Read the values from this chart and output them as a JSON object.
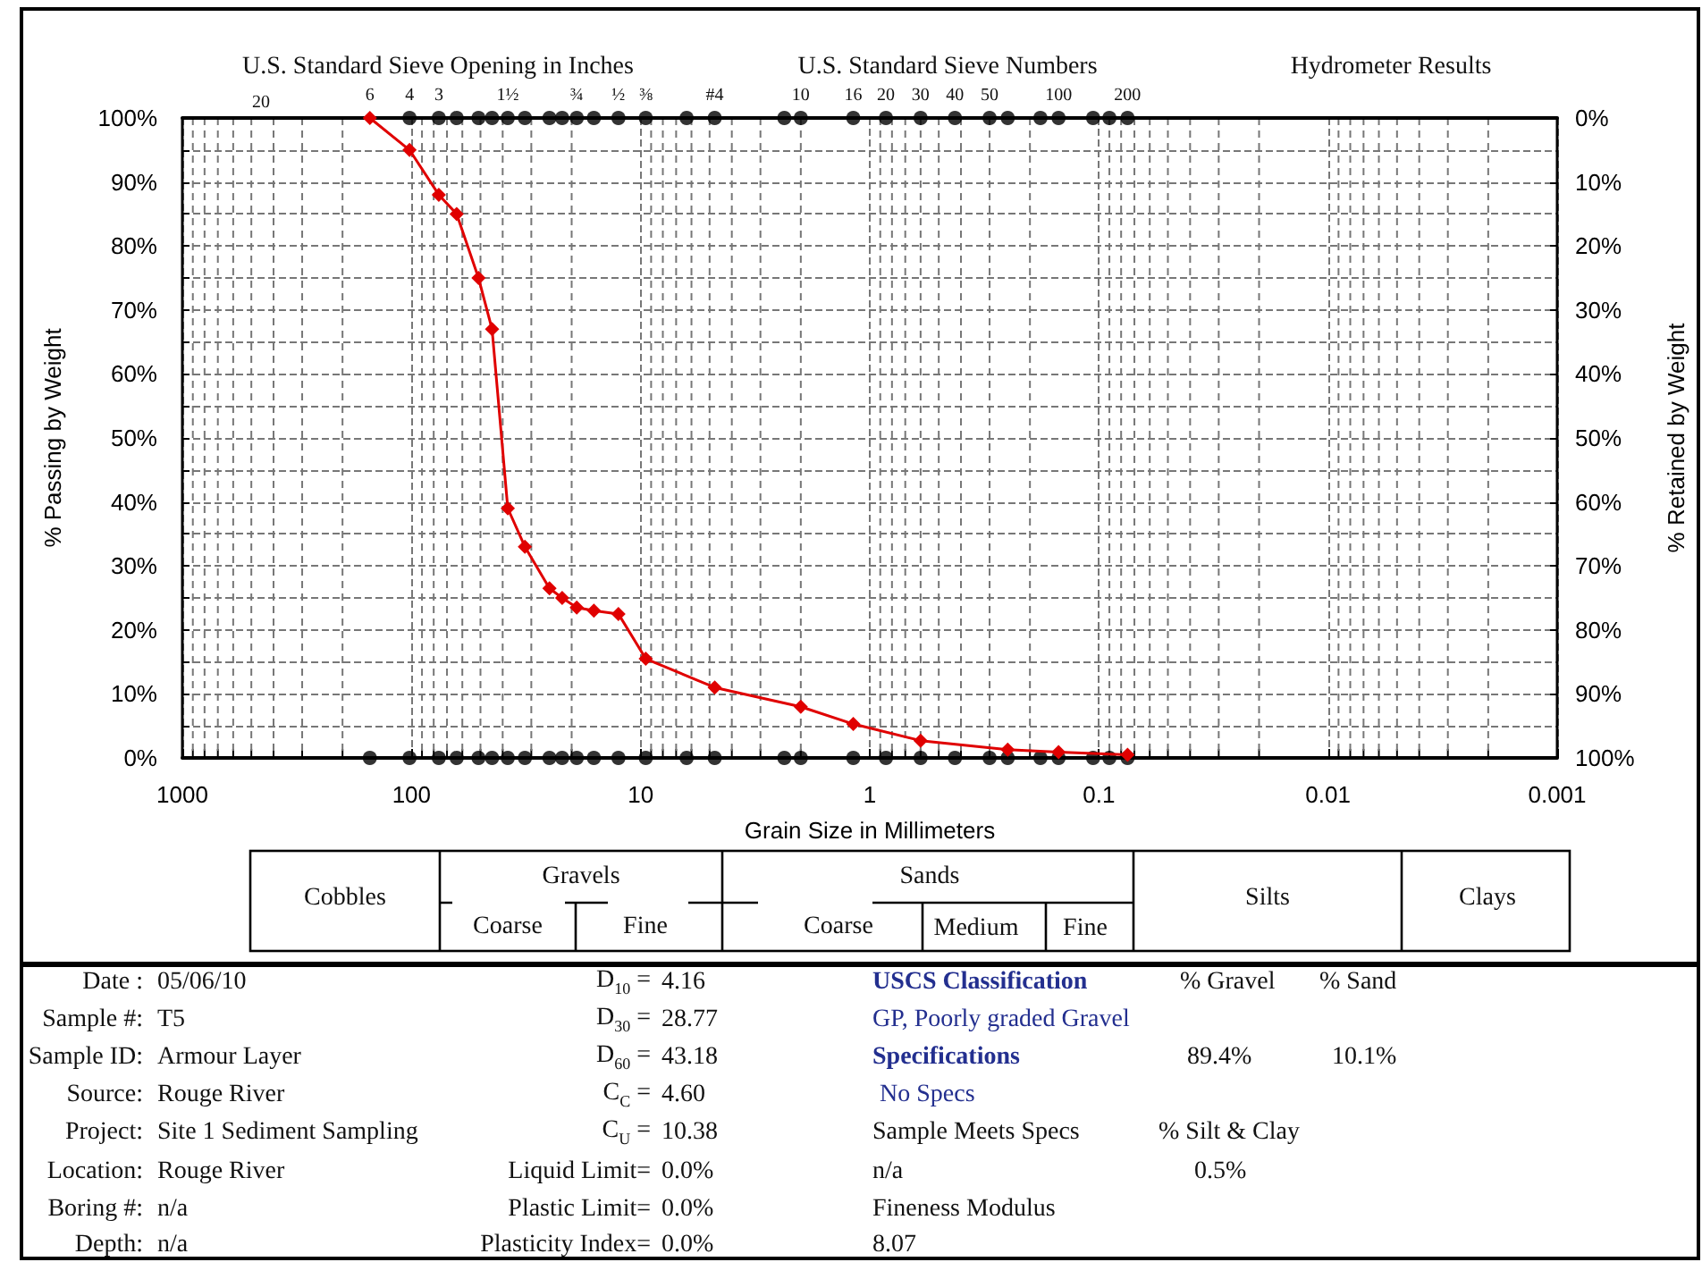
{
  "chart_data": {
    "type": "line",
    "xlabel": "Grain Size in Millimeters",
    "ylabel": "% Passing by Weight",
    "y2label": "% Retained by Weight",
    "log": "x",
    "xlim": [
      1000,
      0.001
    ],
    "xticks": [
      1000,
      {
        "value": 900,
        "label": null
      },
      {
        "value": 800,
        "label": null
      },
      {
        "value": 700,
        "label": null
      },
      {
        "value": 600,
        "label": null
      },
      {
        "value": 500,
        "label": null
      },
      {
        "value": 400,
        "label": null
      },
      {
        "value": 300,
        "label": null
      },
      {
        "value": 200,
        "label": null
      },
      100,
      {
        "value": 90,
        "label": null
      },
      {
        "value": 80,
        "label": null
      },
      {
        "value": 70,
        "label": null
      },
      {
        "value": 60,
        "label": null
      },
      {
        "value": 50,
        "label": null
      },
      {
        "value": 40,
        "label": null
      },
      {
        "value": 30,
        "label": null
      },
      {
        "value": 20,
        "label": null
      },
      10,
      {
        "value": 9,
        "label": null
      },
      {
        "value": 8,
        "label": null
      },
      {
        "value": 7,
        "label": null
      },
      {
        "value": 6,
        "label": null
      },
      {
        "value": 5,
        "label": null
      },
      {
        "value": 4,
        "label": null
      },
      {
        "value": 3,
        "label": null
      },
      {
        "value": 2,
        "label": null
      },
      1,
      {
        "value": 0.9,
        "label": null
      },
      {
        "value": 0.8,
        "label": null
      },
      {
        "value": 0.7,
        "label": null
      },
      {
        "value": 0.6,
        "label": null
      },
      {
        "value": 0.5,
        "label": null
      },
      {
        "value": 0.4,
        "label": null
      },
      {
        "value": 0.3,
        "label": null
      },
      {
        "value": 0.2,
        "label": null
      },
      0.1,
      {
        "value": 0.09,
        "label": null
      },
      {
        "value": 0.08,
        "label": null
      },
      {
        "value": 0.07,
        "label": null
      },
      {
        "value": 0.06,
        "label": null
      },
      {
        "value": 0.05,
        "label": null
      },
      {
        "value": 0.04,
        "label": null
      },
      {
        "value": 0.03,
        "label": null
      },
      {
        "value": 0.02,
        "label": null
      },
      0.01,
      {
        "value": 0.009,
        "label": null
      },
      {
        "value": 0.008,
        "label": null
      },
      {
        "value": 0.007,
        "label": null
      },
      {
        "value": 0.006,
        "label": null
      },
      {
        "value": 0.005,
        "label": null
      },
      {
        "value": 0.004,
        "label": null
      },
      {
        "value": 0.003,
        "label": null
      },
      {
        "value": 0.002,
        "label": null
      },
      0.001
    ],
    "ylim": [
      0,
      100
    ],
    "yticks": [
      {
        "value": 0,
        "label": "0%"
      },
      {
        "value": 5,
        "label": null
      },
      {
        "value": 10,
        "label": "10%"
      },
      {
        "value": 15,
        "label": null
      },
      {
        "value": 20,
        "label": "20%"
      },
      {
        "value": 25,
        "label": null
      },
      {
        "value": 30,
        "label": "30%"
      },
      {
        "value": 35,
        "label": null
      },
      {
        "value": 40,
        "label": "40%"
      },
      {
        "value": 45,
        "label": null
      },
      {
        "value": 50,
        "label": "50%"
      },
      {
        "value": 55,
        "label": null
      },
      {
        "value": 60,
        "label": "60%"
      },
      {
        "value": 65,
        "label": null
      },
      {
        "value": 70,
        "label": "70%"
      },
      {
        "value": 75,
        "label": null
      },
      {
        "value": 80,
        "label": "80%"
      },
      {
        "value": 85,
        "label": null
      },
      {
        "value": 90,
        "label": "90%"
      },
      {
        "value": 95,
        "label": null
      },
      {
        "value": 100,
        "label": "100%"
      }
    ],
    "y2lim": [
      100,
      0
    ],
    "y2ticks": [
      {
        "value": 0,
        "label": "0%"
      },
      {
        "value": 10,
        "label": "10%"
      },
      {
        "value": 20,
        "label": "20%"
      },
      {
        "value": 30,
        "label": "30%"
      },
      {
        "value": 40,
        "label": "40%"
      },
      {
        "value": 50,
        "label": "50%"
      },
      {
        "value": 60,
        "label": "60%"
      },
      {
        "value": 70,
        "label": "70%"
      },
      {
        "value": 80,
        "label": "80%"
      },
      {
        "value": 90,
        "label": "90%"
      },
      {
        "value": 100,
        "label": "100%"
      }
    ],
    "grid": true,
    "series": [
      {
        "type": "scatter",
        "color": "#000000",
        "marker": "circle",
        "x": [
          102,
          76,
          63.5,
          51,
          44.5,
          38,
          32,
          25,
          22,
          19,
          16,
          12.5,
          9.5,
          6.3,
          4.75,
          2.36,
          2,
          1.18,
          0.85,
          0.6,
          0.425,
          0.3,
          0.25,
          0.18,
          0.15,
          0.106,
          0.09,
          0.075
        ],
        "values": [
          100,
          100,
          100,
          100,
          100,
          100,
          100,
          100,
          100,
          100,
          100,
          100,
          100,
          100,
          100,
          100,
          100,
          100,
          100,
          100,
          100,
          100,
          100,
          100,
          100,
          100,
          100,
          100
        ]
      },
      {
        "type": "scatter",
        "color": "#000000",
        "marker": "circle",
        "x": [
          152,
          102,
          76,
          63.5,
          51,
          44.5,
          38,
          32,
          25,
          22,
          19,
          16,
          12.5,
          9.5,
          6.3,
          4.75,
          2.36,
          2,
          1.18,
          0.85,
          0.6,
          0.425,
          0.3,
          0.25,
          0.18,
          0.15,
          0.106,
          0.09,
          0.075
        ],
        "values": [
          0,
          0,
          0,
          0,
          0,
          0,
          0,
          0,
          0,
          0,
          0,
          0,
          0,
          0,
          0,
          0,
          0,
          0,
          0,
          0,
          0,
          0,
          0,
          0,
          0,
          0,
          0,
          0,
          0
        ]
      },
      {
        "color": "#e00000",
        "marker": "diamond",
        "x": [
          152,
          102,
          76,
          63.5,
          51,
          44.5,
          38,
          32,
          25,
          22,
          19,
          16,
          12.5,
          9.5,
          4.75,
          2,
          1.18,
          0.6,
          0.25,
          0.15,
          0.075
        ],
        "values": [
          100,
          95,
          88,
          85,
          75,
          67,
          39,
          33,
          26.5,
          25,
          23.5,
          23,
          22.5,
          15.5,
          11,
          8,
          5.3,
          2.7,
          1.3,
          0.9,
          0.5
        ]
      }
    ],
    "annotations": [
      "U.S. Standard Sieve Opening in Inches",
      "U.S. Standard Sieve Numbers",
      "Hydrometer Results",
      "Cobbles",
      "Gravels",
      "Coarse",
      "Fine",
      "Sands",
      "Coarse",
      "Medium",
      "Fine",
      "Silts",
      "Clays",
      "Date :",
      "Sample #:",
      "Sample ID:",
      "Source:",
      "Project:",
      "Location:",
      "Boring #:",
      "Depth:",
      "05/06/10",
      "T5",
      "Armour Layer",
      "Rouge River",
      "Site 1 Sediment Sampling",
      "Rouge River",
      "n/a",
      "n/a",
      "D$_{10}$ =",
      "D$_{30}$ =",
      "D$_{60}$ =",
      "C$_{C}$ =",
      "C$_{U}$ =",
      "Liquid Limit=",
      "Plastic Limit=",
      "Plasticity Index=",
      "4.16",
      "28.77",
      "43.18",
      "4.60",
      "10.38",
      "0.0%",
      "0.0%",
      "0.0%",
      "USCS Classification",
      "% Gravel",
      "% Sand",
      "GP, Poorly graded Gravel",
      "Specifications",
      "89.4%",
      "10.1%",
      "No Specs",
      "Sample Meets Specs",
      "% Silt & Clay",
      "n/a",
      "0.5%",
      "Fineness Modulus",
      "8.07",
      "20",
      {
        "text": "6",
        "x": 152,
        "y": 100
      },
      {
        "text": "4",
        "x": 102,
        "y": 100
      },
      {
        "text": "3",
        "x": 76,
        "y": 100
      },
      {
        "text": "1½",
        "x": 38,
        "y": 100
      },
      {
        "text": "¾",
        "x": 19,
        "y": 100
      },
      {
        "text": "½",
        "x": 12.5,
        "y": 100
      },
      {
        "text": "⅜",
        "x": 9.5,
        "y": 100
      },
      {
        "text": "#4",
        "x": 4.75,
        "y": 100
      },
      {
        "text": "10",
        "x": 2,
        "y": 100
      },
      {
        "text": "16",
        "x": 1.18,
        "y": 100
      },
      {
        "text": "20",
        "x": 0.85,
        "y": 100
      },
      {
        "text": "30",
        "x": 0.6,
        "y": 100
      },
      {
        "text": "40",
        "x": 0.425,
        "y": 100
      },
      {
        "text": "50",
        "x": 0.3,
        "y": 100
      },
      {
        "text": "100",
        "x": 0.15,
        "y": 100
      },
      {
        "text": "200",
        "x": 0.075,
        "y": 100
      }
    ]
  }
}
